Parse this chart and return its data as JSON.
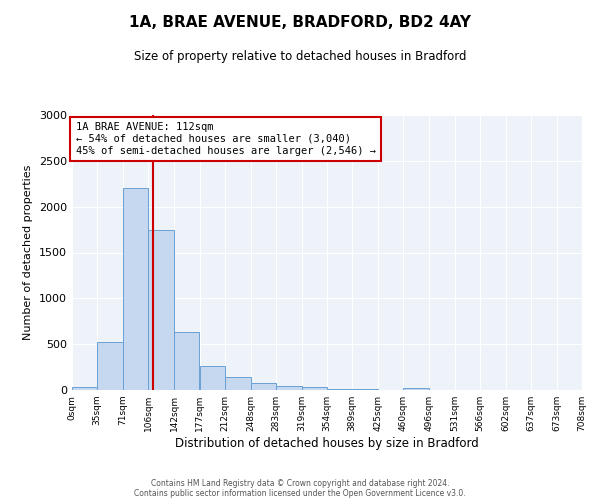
{
  "title": "1A, BRAE AVENUE, BRADFORD, BD2 4AY",
  "subtitle": "Size of property relative to detached houses in Bradford",
  "xlabel": "Distribution of detached houses by size in Bradford",
  "ylabel": "Number of detached properties",
  "bar_color": "#c5d8f0",
  "bar_edge_color": "#6aa0d4",
  "background_color": "#eef2f9",
  "vline_x": 112,
  "vline_color": "#cc0000",
  "annotation_title": "1A BRAE AVENUE: 112sqm",
  "annotation_line1": "← 54% of detached houses are smaller (3,040)",
  "annotation_line2": "45% of semi-detached houses are larger (2,546) →",
  "annotation_box_color": "#cc0000",
  "bin_edges": [
    0,
    35,
    71,
    106,
    142,
    177,
    212,
    248,
    283,
    319,
    354,
    389,
    425,
    460,
    496,
    531,
    566,
    602,
    637,
    673,
    708
  ],
  "bin_counts": [
    30,
    520,
    2200,
    1750,
    635,
    265,
    140,
    75,
    40,
    35,
    10,
    15,
    5,
    20,
    2,
    2,
    1,
    1,
    1,
    1
  ],
  "tick_labels": [
    "0sqm",
    "35sqm",
    "71sqm",
    "106sqm",
    "142sqm",
    "177sqm",
    "212sqm",
    "248sqm",
    "283sqm",
    "319sqm",
    "354sqm",
    "389sqm",
    "425sqm",
    "460sqm",
    "496sqm",
    "531sqm",
    "566sqm",
    "602sqm",
    "637sqm",
    "673sqm",
    "708sqm"
  ],
  "ylim": [
    0,
    3000
  ],
  "yticks": [
    0,
    500,
    1000,
    1500,
    2000,
    2500,
    3000
  ],
  "footer1": "Contains HM Land Registry data © Crown copyright and database right 2024.",
  "footer2": "Contains public sector information licensed under the Open Government Licence v3.0."
}
